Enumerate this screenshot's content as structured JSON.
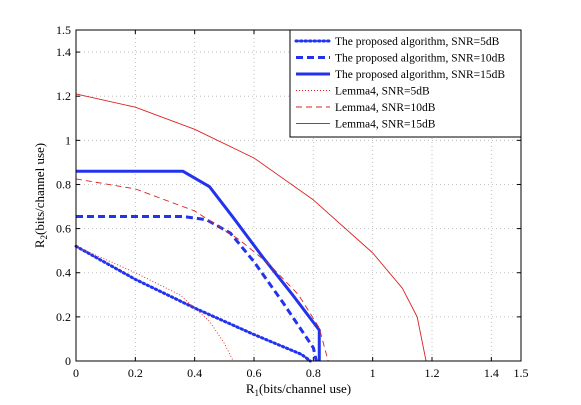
{
  "chart_data": {
    "type": "line",
    "title": "",
    "xlabel_main": "R",
    "xlabel_sub": "1",
    "xlabel_rest": "(bits/channel use)",
    "ylabel_main": "R",
    "ylabel_sub": "2",
    "ylabel_rest": "(bits/channel use)",
    "xlim": [
      0,
      1.5
    ],
    "ylim": [
      0,
      1.5
    ],
    "xticks": [
      0,
      0.2,
      0.4,
      0.6,
      0.8,
      1,
      1.2,
      1.4,
      1.5
    ],
    "yticks": [
      0,
      0.2,
      0.4,
      0.6,
      0.8,
      1,
      1.2,
      1.4,
      1.5
    ],
    "grid": true,
    "legend_position": "top-right",
    "series": [
      {
        "name": "The proposed algorithm, SNR=5dB",
        "color": "#2233ee",
        "style": "dotted",
        "width": "thick",
        "points": [
          [
            0,
            0.52
          ],
          [
            0.2,
            0.37
          ],
          [
            0.4,
            0.24
          ],
          [
            0.6,
            0.12
          ],
          [
            0.76,
            0.03
          ],
          [
            0.79,
            0
          ]
        ]
      },
      {
        "name": "The proposed algorithm, SNR=10dB",
        "color": "#2233ee",
        "style": "dashed",
        "width": "thick",
        "points": [
          [
            0,
            0.655
          ],
          [
            0.36,
            0.655
          ],
          [
            0.44,
            0.64
          ],
          [
            0.52,
            0.58
          ],
          [
            0.6,
            0.45
          ],
          [
            0.7,
            0.26
          ],
          [
            0.8,
            0.06
          ],
          [
            0.81,
            0
          ]
        ]
      },
      {
        "name": "The proposed algorithm, SNR=15dB",
        "color": "#2233ee",
        "style": "solid",
        "width": "thick",
        "points": [
          [
            0,
            0.86
          ],
          [
            0.36,
            0.86
          ],
          [
            0.45,
            0.79
          ],
          [
            0.53,
            0.65
          ],
          [
            0.63,
            0.47
          ],
          [
            0.73,
            0.3
          ],
          [
            0.82,
            0.14
          ],
          [
            0.82,
            0
          ]
        ]
      },
      {
        "name": "Lemma4, SNR=5dB",
        "color": "#dd2222",
        "style": "dotted",
        "width": "thin",
        "points": [
          [
            0,
            0.52
          ],
          [
            0.2,
            0.4
          ],
          [
            0.35,
            0.3
          ],
          [
            0.45,
            0.18
          ],
          [
            0.5,
            0.08
          ],
          [
            0.53,
            0
          ]
        ]
      },
      {
        "name": "Lemma4, SNR=10dB",
        "color": "#dd2222",
        "style": "dashed",
        "width": "thin",
        "points": [
          [
            0,
            0.825
          ],
          [
            0.2,
            0.78
          ],
          [
            0.4,
            0.68
          ],
          [
            0.55,
            0.55
          ],
          [
            0.65,
            0.44
          ],
          [
            0.75,
            0.3
          ],
          [
            0.82,
            0.15
          ],
          [
            0.85,
            0
          ]
        ]
      },
      {
        "name": "Lemma4, SNR=15dB",
        "color": "#dd2222",
        "style": "solid",
        "width": "thin",
        "points": [
          [
            0,
            1.21
          ],
          [
            0.2,
            1.15
          ],
          [
            0.4,
            1.05
          ],
          [
            0.6,
            0.92
          ],
          [
            0.8,
            0.73
          ],
          [
            1.0,
            0.49
          ],
          [
            1.1,
            0.33
          ],
          [
            1.15,
            0.2
          ],
          [
            1.18,
            0
          ]
        ]
      }
    ]
  }
}
